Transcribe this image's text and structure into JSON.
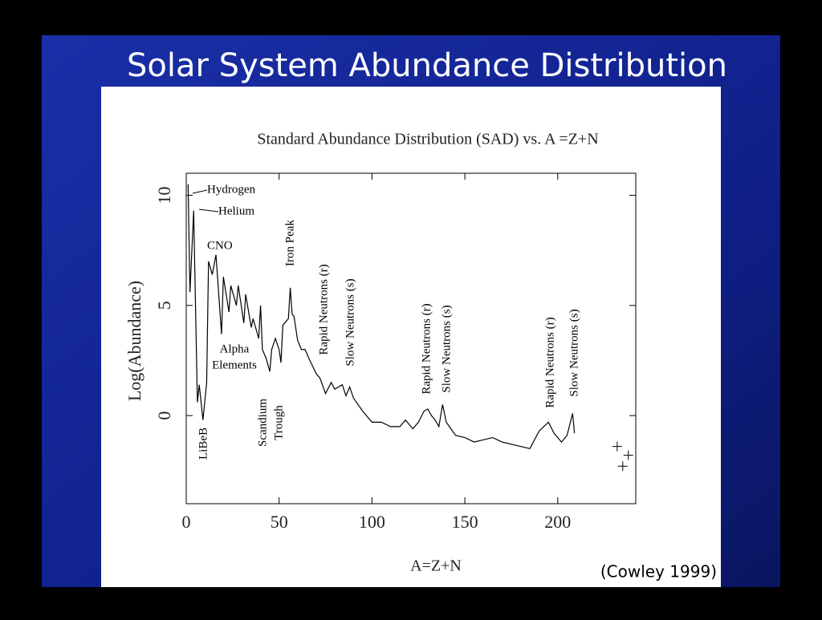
{
  "slide_title": "Solar System Abundance Distribution",
  "citation": "(Cowley 1999)",
  "chart_data": {
    "type": "line",
    "title": "Standard Abundance Distribution (SAD) vs. A =Z+N",
    "x_label": "A=Z+N",
    "y_label": "Log(Abundance)",
    "x": [
      1,
      2,
      4,
      6,
      7,
      9,
      11,
      12,
      14,
      16,
      19,
      20,
      23,
      24,
      27,
      28,
      31,
      32,
      35,
      36,
      39,
      40,
      41,
      43,
      45,
      46,
      48,
      50,
      51,
      52,
      55,
      56,
      57,
      58,
      60,
      62,
      64,
      66,
      70,
      72,
      75,
      78,
      80,
      84,
      86,
      88,
      90,
      95,
      100,
      105,
      110,
      115,
      118,
      120,
      122,
      125,
      128,
      130,
      132,
      134,
      136,
      138,
      140,
      145,
      150,
      155,
      160,
      165,
      170,
      175,
      180,
      185,
      190,
      195,
      198,
      202,
      205,
      208,
      209
    ],
    "series": [
      {
        "color": "#000000",
        "values": [
          10.5,
          5.6,
          9.3,
          0.6,
          1.4,
          -0.2,
          1.5,
          7.0,
          6.4,
          7.3,
          3.7,
          6.3,
          4.7,
          5.9,
          5.0,
          5.9,
          4.2,
          5.5,
          4.0,
          4.4,
          3.5,
          5.0,
          3.0,
          2.6,
          2.0,
          3.0,
          3.5,
          3.0,
          2.4,
          4.1,
          4.4,
          5.8,
          4.6,
          4.5,
          3.4,
          3.0,
          3.0,
          2.6,
          1.9,
          1.7,
          1.0,
          1.5,
          1.2,
          1.4,
          0.9,
          1.3,
          0.8,
          0.2,
          -0.3,
          -0.3,
          -0.5,
          -0.5,
          -0.2,
          -0.4,
          -0.6,
          -0.3,
          0.2,
          0.3,
          0.0,
          -0.2,
          -0.5,
          0.5,
          -0.3,
          -0.9,
          -1.0,
          -1.2,
          -1.1,
          -1.0,
          -1.2,
          -1.3,
          -1.4,
          -1.5,
          -0.7,
          -0.3,
          -0.8,
          -1.2,
          -0.9,
          0.1,
          -0.8
        ]
      }
    ],
    "points": {
      "x": [
        232,
        235,
        238
      ],
      "y": [
        -1.4,
        -2.3,
        -1.8
      ]
    },
    "xlim": [
      0,
      242
    ],
    "ylim": [
      -4,
      11
    ],
    "xticks": [
      0,
      50,
      100,
      150,
      200
    ],
    "yticks": [
      0,
      5,
      10
    ],
    "annotations": [
      "Hydrogen",
      "Helium",
      "CNO",
      "Iron Peak",
      "Rapid Neutrons (r)",
      "Slow Neutrons (s)",
      "Alpha",
      "Elements",
      "LiBeB",
      "Scandium",
      "Trough",
      "Rapid Neutrons (r)",
      "Slow Neutrons (s)",
      "Rapid Neutrons (r)",
      "Slow Neutrons (s)"
    ]
  }
}
